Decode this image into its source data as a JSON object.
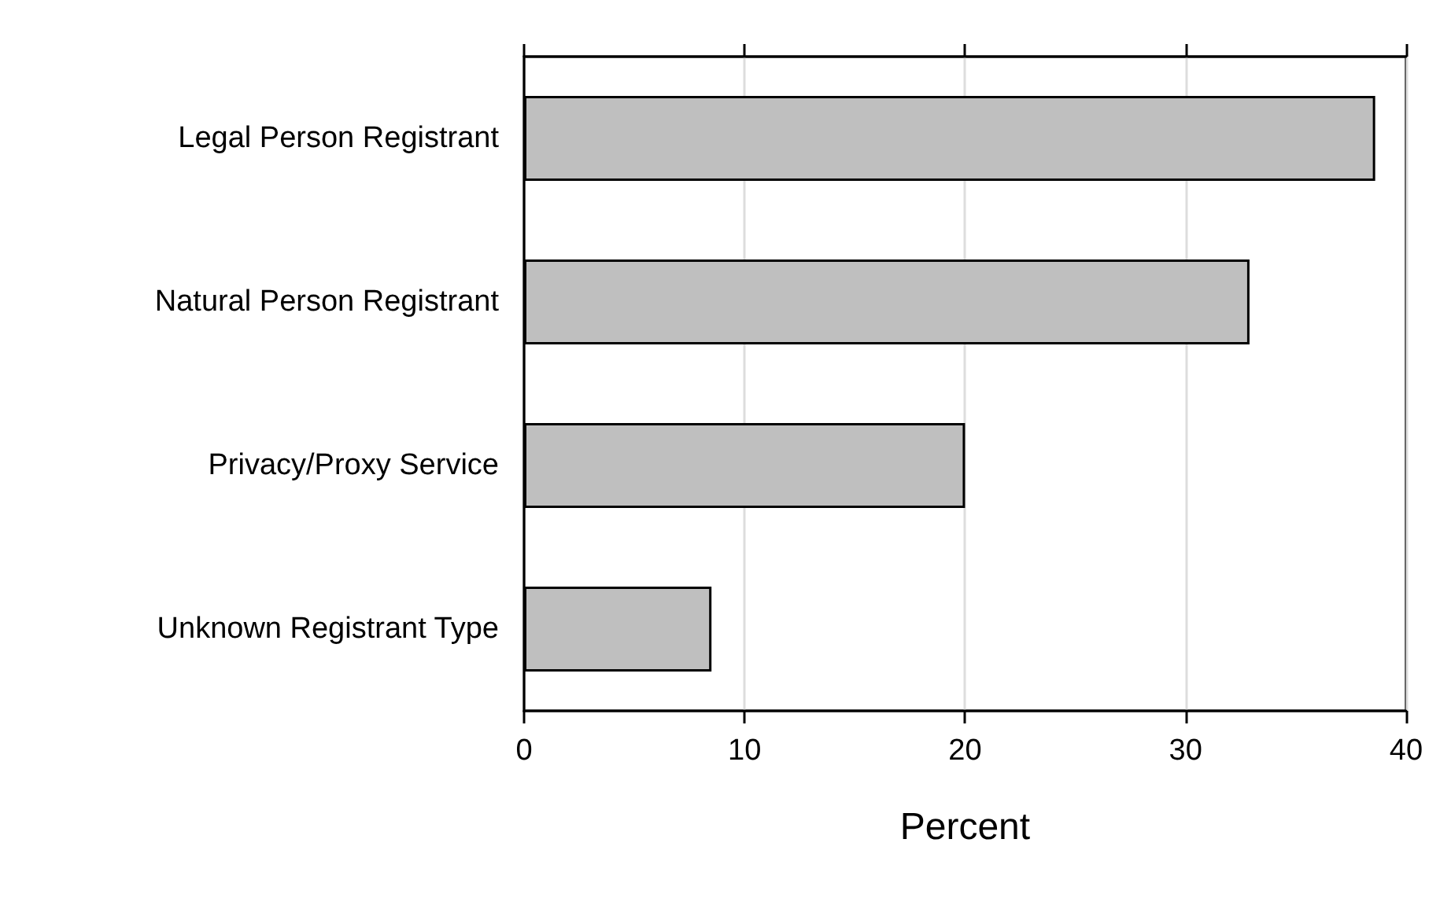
{
  "chart_data": {
    "type": "bar",
    "orientation": "horizontal",
    "categories": [
      "Legal Person Registrant",
      "Natural Person Registrant",
      "Privacy/Proxy Service",
      "Unknown Registrant Type"
    ],
    "values": [
      38.6,
      32.9,
      20.0,
      8.5
    ],
    "color": "#bfbfbf",
    "xlabel": "Percent",
    "xlim": [
      0,
      40
    ],
    "xticks": [
      0,
      10,
      20,
      30,
      40
    ],
    "grid": "x"
  }
}
